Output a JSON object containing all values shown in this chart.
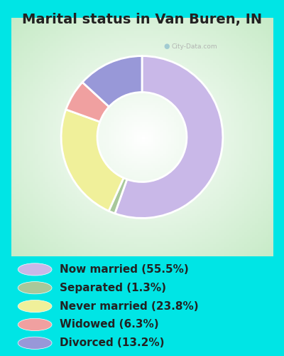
{
  "title": "Marital status in Van Buren, IN",
  "slices": [
    55.5,
    1.3,
    23.8,
    6.3,
    13.2
  ],
  "labels": [
    "Now married (55.5%)",
    "Separated (1.3%)",
    "Never married (23.8%)",
    "Widowed (6.3%)",
    "Divorced (13.2%)"
  ],
  "colors": [
    "#c9b8e8",
    "#a8c89a",
    "#f0f09a",
    "#f0a0a0",
    "#9898d8"
  ],
  "outer_bg": "#00e5e5",
  "title_color": "#222222",
  "title_fontsize": 14,
  "legend_fontsize": 11,
  "donut_width": 0.38,
  "start_angle": 90,
  "watermark": "City-Data.com"
}
